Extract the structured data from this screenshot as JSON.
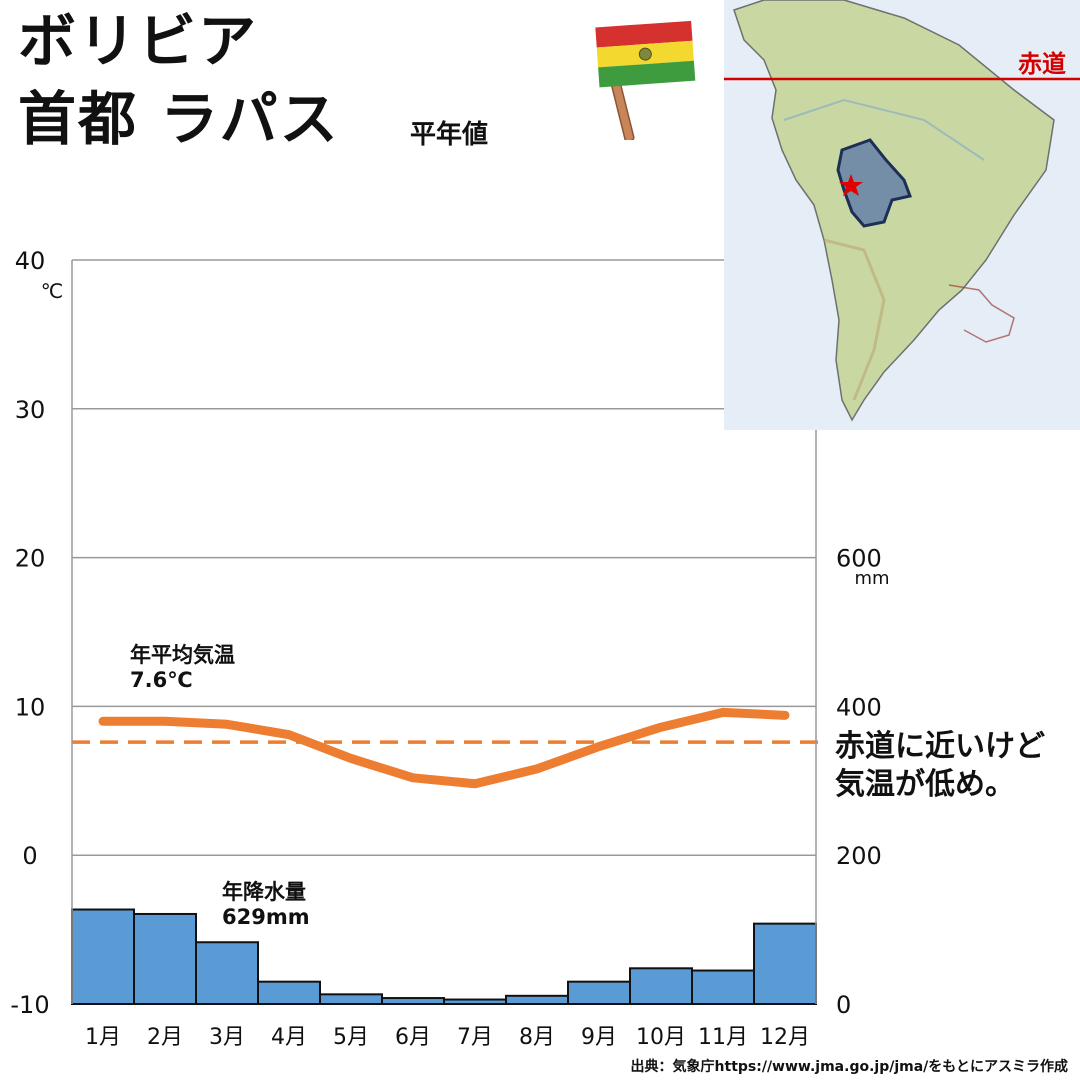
{
  "header": {
    "country": "ボリビア",
    "capital": "首都 ラパス",
    "subtitle": "平年値"
  },
  "icons": {
    "flag": "bolivia-flag-icon",
    "map": "south-america-map",
    "marker": "star-icon"
  },
  "map": {
    "equator_label": "赤道",
    "equator_color": "#d40000",
    "highlight_color": "#4f6fa8",
    "marker_color": "#e00000"
  },
  "annotations": {
    "temp_label": "年平均気温",
    "temp_value": "7.6℃",
    "rain_label": "年降水量",
    "rain_value": "629mm",
    "comment_line1": "赤道に近いけど",
    "comment_line2": "気温が低め。"
  },
  "source": "出典：気象庁https://www.jma.go.jp/jma/をもとにアスミラ作成",
  "colors": {
    "temperature": "#ed7d31",
    "precipitation": "#5b9bd5",
    "grid": "#999999"
  },
  "chart_data": {
    "type": "bar+line",
    "categories": [
      "1月",
      "2月",
      "3月",
      "4月",
      "5月",
      "6月",
      "7月",
      "8月",
      "9月",
      "10月",
      "11月",
      "12月"
    ],
    "series": [
      {
        "name": "気温",
        "type": "line",
        "axis": "left",
        "unit": "℃",
        "values": [
          9.0,
          9.0,
          8.8,
          8.1,
          6.5,
          5.2,
          4.8,
          5.8,
          7.3,
          8.6,
          9.6,
          9.4
        ]
      },
      {
        "name": "降水量",
        "type": "bar",
        "axis": "right",
        "unit": "mm",
        "values": [
          127,
          121,
          83,
          30,
          13,
          8,
          6,
          11,
          30,
          48,
          45,
          108
        ]
      }
    ],
    "reference_line": {
      "name": "年平均気温",
      "value": 7.6,
      "axis": "left",
      "style": "dashed"
    },
    "left_axis": {
      "range": [
        -10,
        40
      ],
      "ticks": [
        -10,
        0,
        10,
        20,
        30,
        40
      ],
      "unit": "℃"
    },
    "right_axis": {
      "range": [
        0,
        1000
      ],
      "ticks": [
        0,
        200,
        400,
        600
      ],
      "tick_labels": [
        "0",
        "200",
        "400",
        "600"
      ],
      "unit": "mm"
    },
    "grid": true
  }
}
